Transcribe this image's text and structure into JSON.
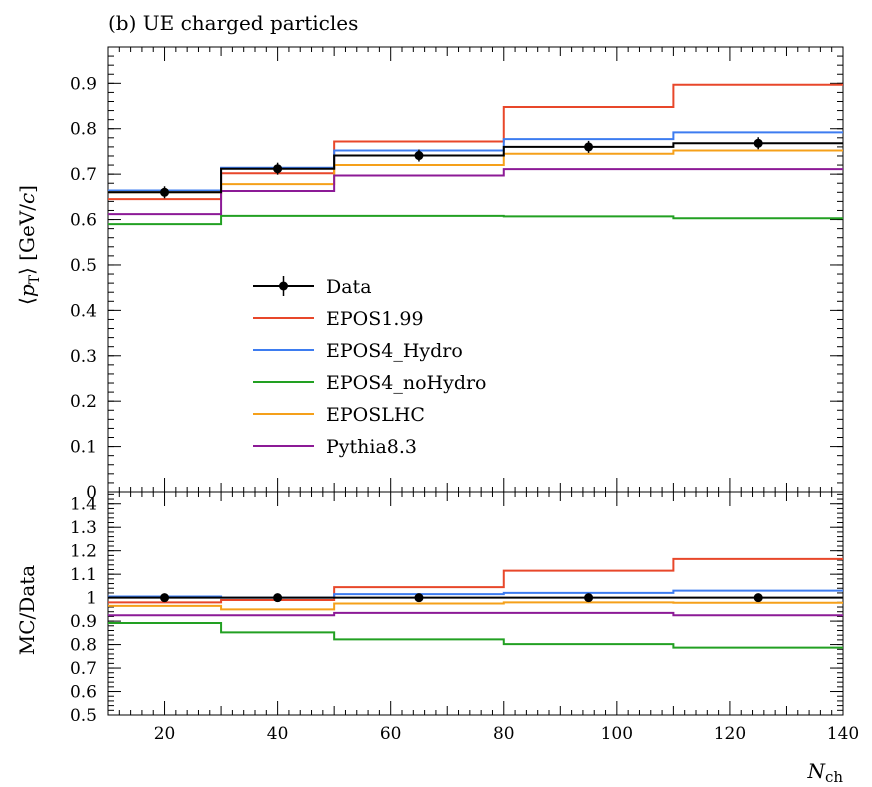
{
  "chart_data": {
    "type": "line",
    "title": "(b) UE charged particles",
    "xlabel": "N_ch",
    "xlabel_main": "N",
    "xlabel_sub": "ch",
    "ylabel": "⟨p_T⟩ [GeV/c]",
    "ratio_ylabel": "MC/Data",
    "xlim": [
      10,
      140
    ],
    "ylim": [
      0,
      0.98
    ],
    "ratio_ylim": [
      0.5,
      1.45
    ],
    "x_ticks": [
      20,
      40,
      60,
      80,
      100,
      120,
      140
    ],
    "y_ticks": [
      0,
      0.1,
      0.2,
      0.3,
      0.4,
      0.5,
      0.6,
      0.7,
      0.8,
      0.9
    ],
    "y_tick_labels": [
      "0",
      "0.1",
      "0.2",
      "0.3",
      "0.4",
      "0.5",
      "0.6",
      "0.7",
      "0.8",
      "0.9"
    ],
    "ratio_ticks": [
      0.5,
      0.6,
      0.7,
      0.8,
      0.9,
      1,
      1.1,
      1.2,
      1.3,
      1.4
    ],
    "ratio_tick_labels": [
      "0.5",
      "0.6",
      "0.7",
      "0.8",
      "0.9",
      "1",
      "1.1",
      "1.2",
      "1.3",
      "1.4"
    ],
    "bin_edges": [
      10,
      30,
      50,
      80,
      110,
      140
    ],
    "legend_position": "center-left",
    "data": {
      "name": "Data",
      "color": "#000000",
      "x": [
        20,
        40,
        65,
        95,
        125
      ],
      "y": [
        0.66,
        0.712,
        0.741,
        0.76,
        0.768
      ],
      "ratio": [
        1,
        1,
        1,
        1,
        1
      ]
    },
    "series": [
      {
        "name": "EPOS1.99",
        "color": "#e8472a",
        "values": [
          0.645,
          0.702,
          0.772,
          0.848,
          0.897
        ],
        "ratio": [
          0.98,
          0.99,
          1.045,
          1.115,
          1.165
        ]
      },
      {
        "name": "EPOS4_Hydro",
        "color": "#3d7cf0",
        "values": [
          0.664,
          0.714,
          0.752,
          0.777,
          0.792
        ],
        "ratio": [
          1.005,
          1.0,
          1.015,
          1.02,
          1.03
        ]
      },
      {
        "name": "EPOS4_noHydro",
        "color": "#22a022",
        "values": [
          0.59,
          0.608,
          0.608,
          0.607,
          0.603
        ],
        "ratio": [
          0.892,
          0.852,
          0.822,
          0.802,
          0.787
        ]
      },
      {
        "name": "EPOSLHC",
        "color": "#f5a01a",
        "values": [
          0.66,
          0.678,
          0.72,
          0.745,
          0.752
        ],
        "ratio": [
          0.965,
          0.95,
          0.975,
          0.98,
          0.978
        ]
      },
      {
        "name": "Pythia8.3",
        "color": "#8c1a96",
        "values": [
          0.612,
          0.663,
          0.697,
          0.711,
          0.711
        ],
        "ratio": [
          0.925,
          0.925,
          0.935,
          0.935,
          0.925
        ]
      }
    ]
  }
}
